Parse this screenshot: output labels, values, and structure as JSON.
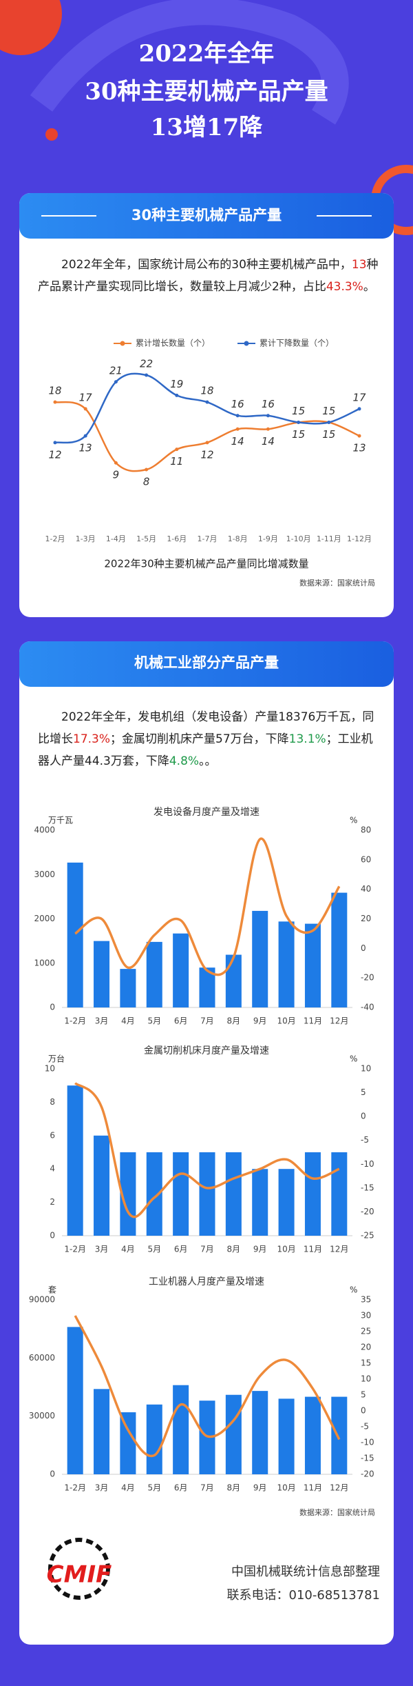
{
  "header": {
    "title_lines": [
      "2022年全年",
      "30种主要机械产品产量",
      "13增17降"
    ]
  },
  "sections": [
    {
      "heading": "30种主要机械产品产量",
      "paragraph": [
        {
          "text": "2022年全年，国家统计局公布的30种主要机械产品中，"
        },
        {
          "text": "13",
          "color": "#d9221c"
        },
        {
          "text": "种产品累计产量实现同比增长，数量较上月减少2种，占比"
        },
        {
          "text": "43.3%",
          "color": "#d9221c"
        },
        {
          "text": "。"
        }
      ],
      "source": "数据来源：国家统计局"
    },
    {
      "heading": "机械工业部分产品产量",
      "paragraph": [
        {
          "text": "2022年全年，发电机组（发电设备）产量18376万千瓦，同比增长"
        },
        {
          "text": "17.3%",
          "color": "#d9221c"
        },
        {
          "text": "；金属切削机床产量57万台，下降"
        },
        {
          "text": "13.1%",
          "color": "#1f9a4a"
        },
        {
          "text": "；工业机器人产量44.3万套，下降"
        },
        {
          "text": "4.8%",
          "color": "#1f9a4a"
        },
        {
          "text": "。。"
        }
      ],
      "source": "数据来源：国家统计局"
    }
  ],
  "chart_data": [
    {
      "type": "line",
      "title": "2022年30种主要机械产品产量同比增减数量",
      "categories": [
        "1-2月",
        "1-3月",
        "1-4月",
        "1-5月",
        "1-6月",
        "1-7月",
        "1-8月",
        "1-9月",
        "1-10月",
        "1-11月",
        "1-12月"
      ],
      "series": [
        {
          "name": "累计增长数量（个）",
          "color": "#ee7d30",
          "values": [
            18,
            17,
            9,
            8,
            11,
            12,
            14,
            14,
            15,
            15,
            13
          ]
        },
        {
          "name": "累计下降数量（个）",
          "color": "#2f68c6",
          "values": [
            12,
            13,
            21,
            22,
            19,
            18,
            16,
            16,
            15,
            15,
            17
          ]
        }
      ],
      "legend": "top"
    },
    {
      "type": "combo",
      "title": "发电设备月度产量及增速",
      "ylabel": "万千瓦",
      "y2label": "%",
      "categories": [
        "1-2月",
        "3月",
        "4月",
        "5月",
        "6月",
        "7月",
        "8月",
        "9月",
        "10月",
        "11月",
        "12月"
      ],
      "series": [
        {
          "color": "#1e7be6",
          "values": [
            3270,
            1500,
            870,
            1480,
            1670,
            900,
            1190,
            2180,
            1940,
            1890,
            2590
          ]
        },
        {
          "color": "#ee8a3a",
          "type": "line",
          "axis": "y2",
          "values": [
            10,
            20,
            -13,
            9,
            19,
            -15,
            -6,
            74,
            22,
            12,
            42
          ]
        }
      ],
      "ylim": [
        0,
        4000
      ],
      "yticks": [
        0,
        1000,
        2000,
        3000,
        4000
      ],
      "y2lim": [
        -40,
        80
      ],
      "y2ticks": [
        -40,
        -20,
        0,
        20,
        40,
        60,
        80
      ]
    },
    {
      "type": "combo",
      "title": "金属切削机床月度产量及增速",
      "ylabel": "万台",
      "y2label": "%",
      "categories": [
        "1-2月",
        "3月",
        "4月",
        "5月",
        "6月",
        "7月",
        "8月",
        "9月",
        "10月",
        "11月",
        "12月"
      ],
      "series": [
        {
          "color": "#1e7be6",
          "values": [
            9,
            6,
            5,
            5,
            5,
            5,
            5,
            4,
            4,
            5,
            5
          ]
        },
        {
          "color": "#ee8a3a",
          "type": "line",
          "axis": "y2",
          "values": [
            7,
            2,
            -20,
            -17,
            -12,
            -15,
            -13,
            -11,
            -9,
            -13,
            -11
          ]
        }
      ],
      "ylim": [
        0,
        10
      ],
      "yticks": [
        0,
        2,
        4,
        6,
        8,
        10
      ],
      "y2lim": [
        -25,
        10
      ],
      "y2ticks": [
        -25,
        -20,
        -15,
        -10,
        -5,
        0,
        5,
        10
      ]
    },
    {
      "type": "combo",
      "title": "工业机器人月度产量及增速",
      "ylabel": "套",
      "y2label": "%",
      "categories": [
        "1-2月",
        "3月",
        "4月",
        "5月",
        "6月",
        "7月",
        "8月",
        "9月",
        "10月",
        "11月",
        "12月"
      ],
      "series": [
        {
          "color": "#1e7be6",
          "values": [
            76000,
            44000,
            32000,
            36000,
            46000,
            38000,
            41000,
            43000,
            39000,
            40000,
            40000
          ]
        },
        {
          "color": "#ee8a3a",
          "type": "line",
          "axis": "y2",
          "values": [
            30,
            14,
            -6,
            -14,
            2,
            -8,
            -3,
            11,
            16,
            7,
            -9
          ]
        }
      ],
      "ylim": [
        0,
        90000
      ],
      "yticks": [
        0,
        30000,
        60000,
        90000
      ],
      "y2lim": [
        -20,
        35
      ],
      "y2ticks": [
        -20,
        -15,
        -10,
        -5,
        0,
        5,
        10,
        15,
        20,
        25,
        30,
        35
      ]
    }
  ],
  "footer": {
    "logo_text": "CMIF",
    "lines": [
      "中国机械联统计信息部整理",
      "联系电话：010-68513781"
    ]
  }
}
